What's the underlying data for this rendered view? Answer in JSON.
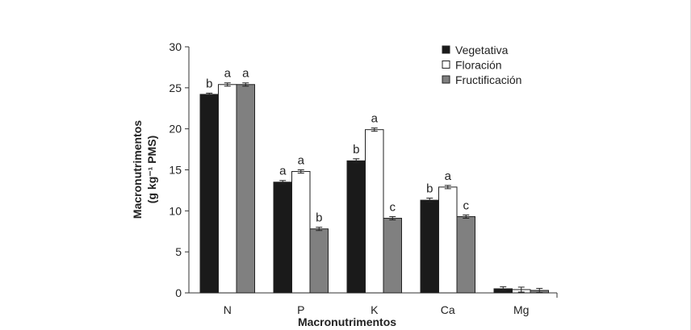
{
  "chart_data": {
    "type": "bar",
    "title": "",
    "xlabel": "Macronutrimentos",
    "ylabel": [
      "Macronutrimentos",
      "(g kg⁻¹ PMS)"
    ],
    "ylim": [
      0,
      30
    ],
    "yticks": [
      0,
      5,
      10,
      15,
      20,
      25,
      30
    ],
    "categories": [
      "N",
      "P",
      "K",
      "Ca",
      "Mg"
    ],
    "legend_position": "top-right",
    "series": [
      {
        "name": "Vegetativa",
        "color": "#1a1a1a",
        "values": [
          24.2,
          13.5,
          16.1,
          11.3,
          0.5
        ],
        "errors": [
          0.15,
          0.2,
          0.25,
          0.25,
          0.25
        ],
        "letters": [
          "b",
          "a",
          "b",
          "b",
          ""
        ]
      },
      {
        "name": "Floración",
        "color": "#ffffff",
        "values": [
          25.4,
          14.8,
          19.9,
          12.9,
          0.4
        ],
        "errors": [
          0.2,
          0.2,
          0.2,
          0.2,
          0.3
        ],
        "letters": [
          "a",
          "a",
          "a",
          "a",
          ""
        ]
      },
      {
        "name": "Fructificación",
        "color": "#808080",
        "values": [
          25.4,
          7.8,
          9.1,
          9.3,
          0.3
        ],
        "errors": [
          0.2,
          0.2,
          0.2,
          0.2,
          0.25
        ],
        "letters": [
          "a",
          "b",
          "c",
          "c",
          ""
        ]
      }
    ]
  }
}
